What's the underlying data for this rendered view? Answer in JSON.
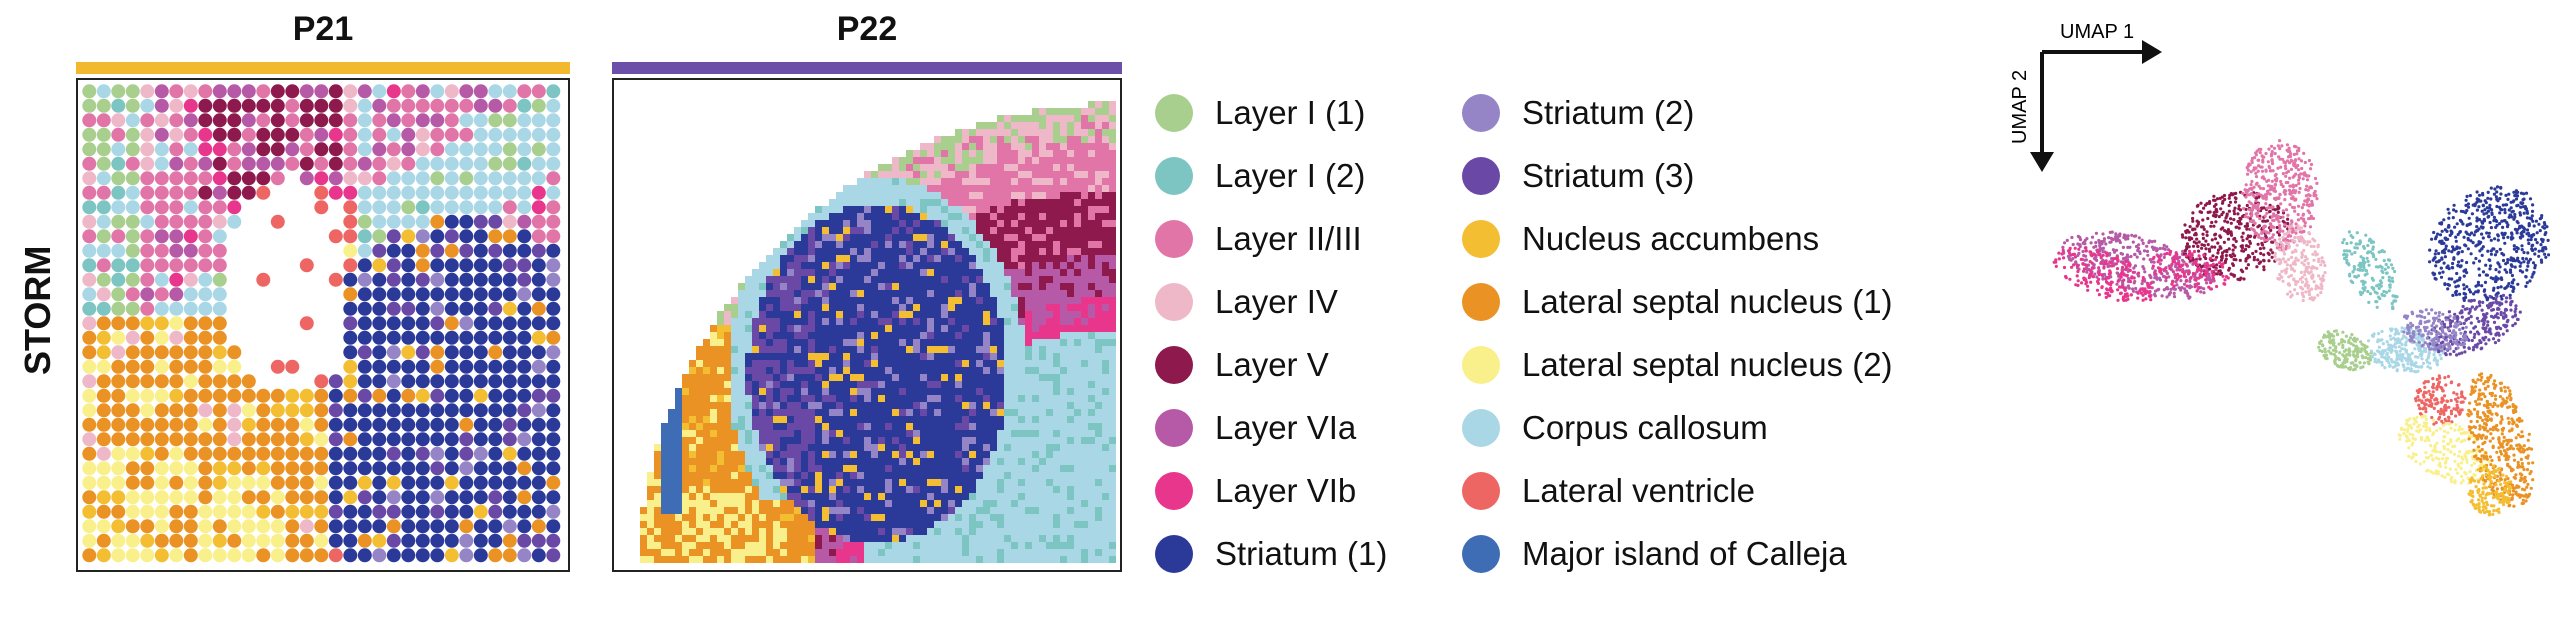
{
  "row_label": "STORM",
  "panels": [
    {
      "title": "P21",
      "bar_color": "#f2b82f"
    },
    {
      "title": "P22",
      "bar_color": "#6b4fa8"
    }
  ],
  "legend": [
    {
      "label": "Layer I (1)",
      "color": "#a8cf8e"
    },
    {
      "label": "Layer I (2)",
      "color": "#7cc5c2"
    },
    {
      "label": "Layer II/III",
      "color": "#e275a8"
    },
    {
      "label": "Layer IV",
      "color": "#efb8c8"
    },
    {
      "label": "Layer V",
      "color": "#8e1a4d"
    },
    {
      "label": "Layer VIa",
      "color": "#b65aa8"
    },
    {
      "label": "Layer VIb",
      "color": "#e8368c"
    },
    {
      "label": "Striatum (1)",
      "color": "#2b3a99"
    },
    {
      "label": "Striatum (2)",
      "color": "#9585c7"
    },
    {
      "label": "Striatum (3)",
      "color": "#6a48a6"
    },
    {
      "label": "Nucleus accumbens",
      "color": "#f4be32"
    },
    {
      "label": "Lateral septal nucleus (1)",
      "color": "#ea9224"
    },
    {
      "label": "Lateral septal nucleus (2)",
      "color": "#f9f08c"
    },
    {
      "label": "Corpus callosum",
      "color": "#a9d7e6"
    },
    {
      "label": "Lateral ventricle",
      "color": "#ee6664"
    },
    {
      "label": "Major island of Calleja",
      "color": "#3e6db6"
    }
  ],
  "umap": {
    "x_label": "UMAP 1",
    "y_label": "UMAP 2"
  }
}
